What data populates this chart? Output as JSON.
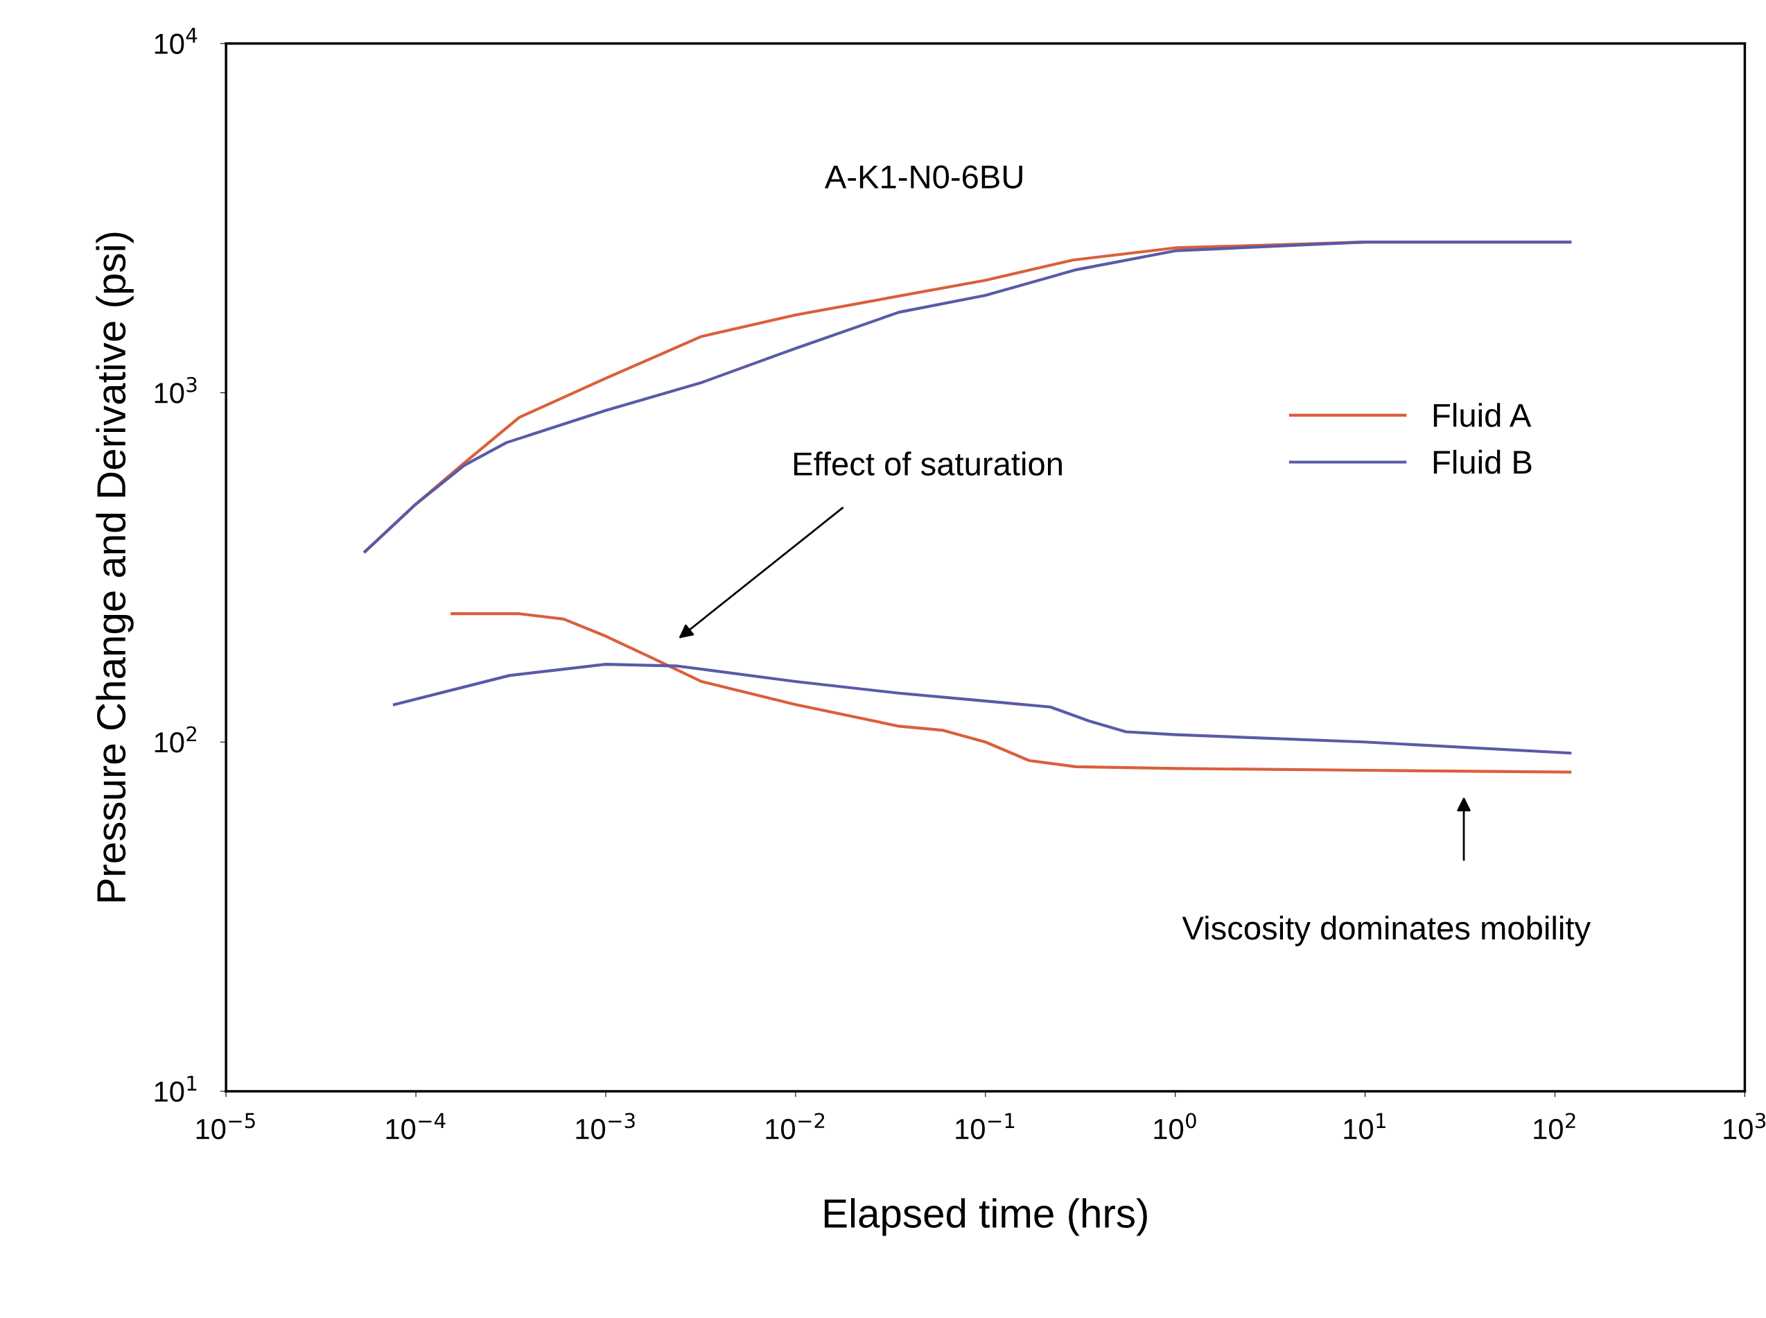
{
  "chart_data": {
    "type": "line",
    "xlabel": "Elapsed time (hrs)",
    "ylabel": "Pressure Change and Derivative (psi)",
    "log": "xy",
    "grid": false,
    "legend": "right",
    "marker": "none",
    "line_style": "solid",
    "xlim": [
      1e-05,
      1000
    ],
    "ylim": [
      10,
      10000
    ],
    "xticks": [
      {
        "value": 1e-05,
        "label": "10$^{−5}$"
      },
      {
        "value": 0.0001,
        "label": "10$^{−4}$"
      },
      {
        "value": 0.001,
        "label": "10$^{−3}$"
      },
      {
        "value": 0.01,
        "label": "10$^{−2}$"
      },
      {
        "value": 0.1,
        "label": "10$^{−1}$"
      },
      {
        "value": 1,
        "label": "10$^{0}$"
      },
      {
        "value": 10,
        "label": "10$^{1}$"
      },
      {
        "value": 100,
        "label": "10$^{2}$"
      },
      {
        "value": 1000,
        "label": "10$^{3}$"
      }
    ],
    "yticks": [
      {
        "value": 10,
        "label": "10$^{1}$"
      },
      {
        "value": 100,
        "label": "10$^{2}$"
      },
      {
        "value": 1000,
        "label": "10$^{3}$"
      },
      {
        "value": 10000,
        "label": "10$^{4}$"
      }
    ],
    "series": [
      {
        "name": "Fluid A",
        "color": "#d9603b",
        "x": [
          5.4e-05,
          0.0001,
          0.00018,
          0.00035,
          0.001,
          0.0032,
          0.01,
          0.1,
          0.29,
          1,
          10,
          120
        ],
        "values": [
          351,
          480,
          630,
          850,
          1100,
          1450,
          1670,
          2100,
          2400,
          2600,
          2700,
          2700
        ]
      },
      {
        "color": "#d9603b",
        "x": [
          0.000155,
          0.00035,
          0.0006,
          0.001,
          0.0018,
          0.0032,
          0.01,
          0.035,
          0.06,
          0.1,
          0.17,
          0.3,
          1,
          10,
          120
        ],
        "values": [
          233,
          233,
          225,
          201,
          173,
          149,
          128,
          111,
          108,
          100,
          88.5,
          85,
          84,
          83,
          82
        ]
      },
      {
        "name": "Fluid B",
        "color": "#5a5aa8",
        "x": [
          5.4e-05,
          0.0001,
          0.00018,
          0.0003,
          0.001,
          0.0032,
          0.01,
          0.035,
          0.1,
          0.3,
          1,
          10,
          120
        ],
        "values": [
          351,
          480,
          620,
          720,
          890,
          1070,
          1340,
          1700,
          1900,
          2250,
          2550,
          2700,
          2700
        ]
      },
      {
        "color": "#5a5aa8",
        "x": [
          7.7e-05,
          0.00031,
          0.001,
          0.0024,
          0.01,
          0.035,
          0.1,
          0.22,
          0.35,
          0.55,
          1,
          10,
          120
        ],
        "values": [
          128,
          155,
          167,
          165,
          149,
          138,
          131,
          126,
          115,
          107,
          105,
          100,
          93
        ]
      }
    ],
    "annotations": [
      "A-K1-N0-6BU",
      "Effect of saturation",
      "Viscosity dominates mobility"
    ]
  }
}
